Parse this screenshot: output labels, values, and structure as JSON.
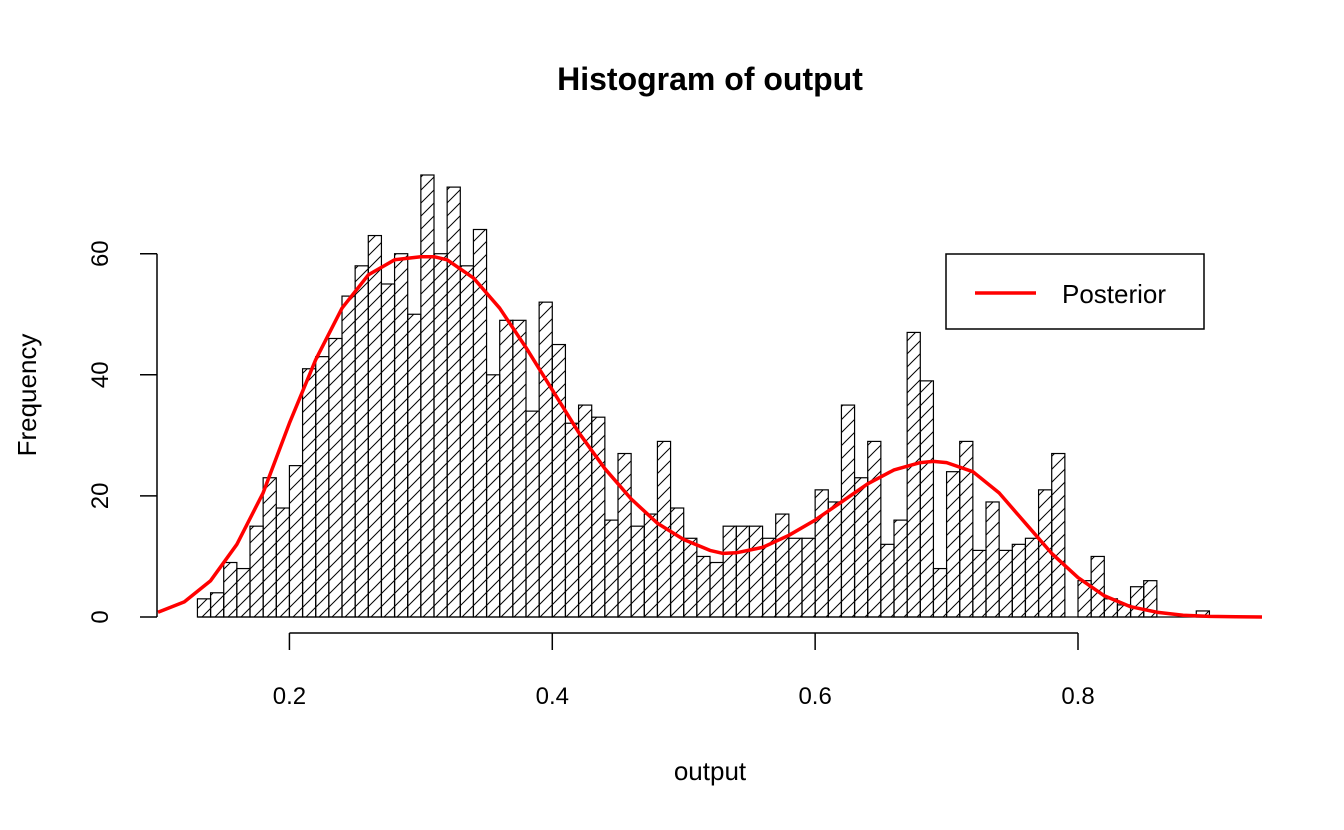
{
  "chart_data": {
    "type": "bar",
    "title": "Histogram of output",
    "xlabel": "output",
    "ylabel": "Frequency",
    "xlim": [
      0.1,
      0.94
    ],
    "ylim": [
      0,
      73
    ],
    "x_ticks": [
      0.2,
      0.4,
      0.6,
      0.8
    ],
    "x_tick_labels": [
      "0.2",
      "0.4",
      "0.6",
      "0.8"
    ],
    "y_ticks": [
      0,
      20,
      40,
      60
    ],
    "y_tick_labels": [
      "0",
      "20",
      "40",
      "60"
    ],
    "bin_start": 0.13,
    "bin_width": 0.01,
    "counts": [
      3,
      4,
      9,
      8,
      15,
      23,
      18,
      25,
      41,
      43,
      46,
      53,
      58,
      63,
      55,
      60,
      50,
      73,
      60,
      71,
      58,
      64,
      40,
      49,
      49,
      34,
      52,
      45,
      32,
      35,
      33,
      16,
      27,
      15,
      17,
      29,
      18,
      13,
      10,
      9,
      15,
      15,
      15,
      13,
      17,
      13,
      13,
      21,
      19,
      35,
      23,
      29,
      12,
      16,
      47,
      39,
      8,
      24,
      29,
      11,
      19,
      11,
      12,
      13,
      21,
      27,
      0,
      6,
      10,
      3,
      2,
      5,
      6,
      0,
      0,
      0,
      1
    ],
    "fill": "hatched",
    "grid": false,
    "legend": {
      "position": "top-right",
      "entries": [
        {
          "name": "Posterior",
          "color": "#ff0000"
        }
      ]
    },
    "series": [
      {
        "name": "Posterior",
        "type": "line",
        "color": "#ff0000",
        "x": [
          0.1,
          0.12,
          0.14,
          0.16,
          0.18,
          0.2,
          0.22,
          0.24,
          0.26,
          0.28,
          0.3,
          0.31,
          0.32,
          0.34,
          0.36,
          0.38,
          0.4,
          0.42,
          0.44,
          0.46,
          0.48,
          0.5,
          0.52,
          0.53,
          0.54,
          0.56,
          0.58,
          0.6,
          0.62,
          0.64,
          0.66,
          0.68,
          0.69,
          0.7,
          0.72,
          0.74,
          0.76,
          0.78,
          0.8,
          0.82,
          0.84,
          0.86,
          0.88,
          0.9,
          0.92,
          0.94
        ],
        "y": [
          0.8,
          2.5,
          6.0,
          12.0,
          20.5,
          32.0,
          42.5,
          51.0,
          56.5,
          59.0,
          59.5,
          59.5,
          59.0,
          56.0,
          51.0,
          44.5,
          37.5,
          30.5,
          24.5,
          19.5,
          15.5,
          12.8,
          11.0,
          10.5,
          10.6,
          11.5,
          13.5,
          16.0,
          19.0,
          22.0,
          24.3,
          25.5,
          25.7,
          25.5,
          24.0,
          20.5,
          15.5,
          10.5,
          6.5,
          3.5,
          1.7,
          0.8,
          0.3,
          0.1,
          0.05,
          0.0
        ]
      }
    ]
  }
}
